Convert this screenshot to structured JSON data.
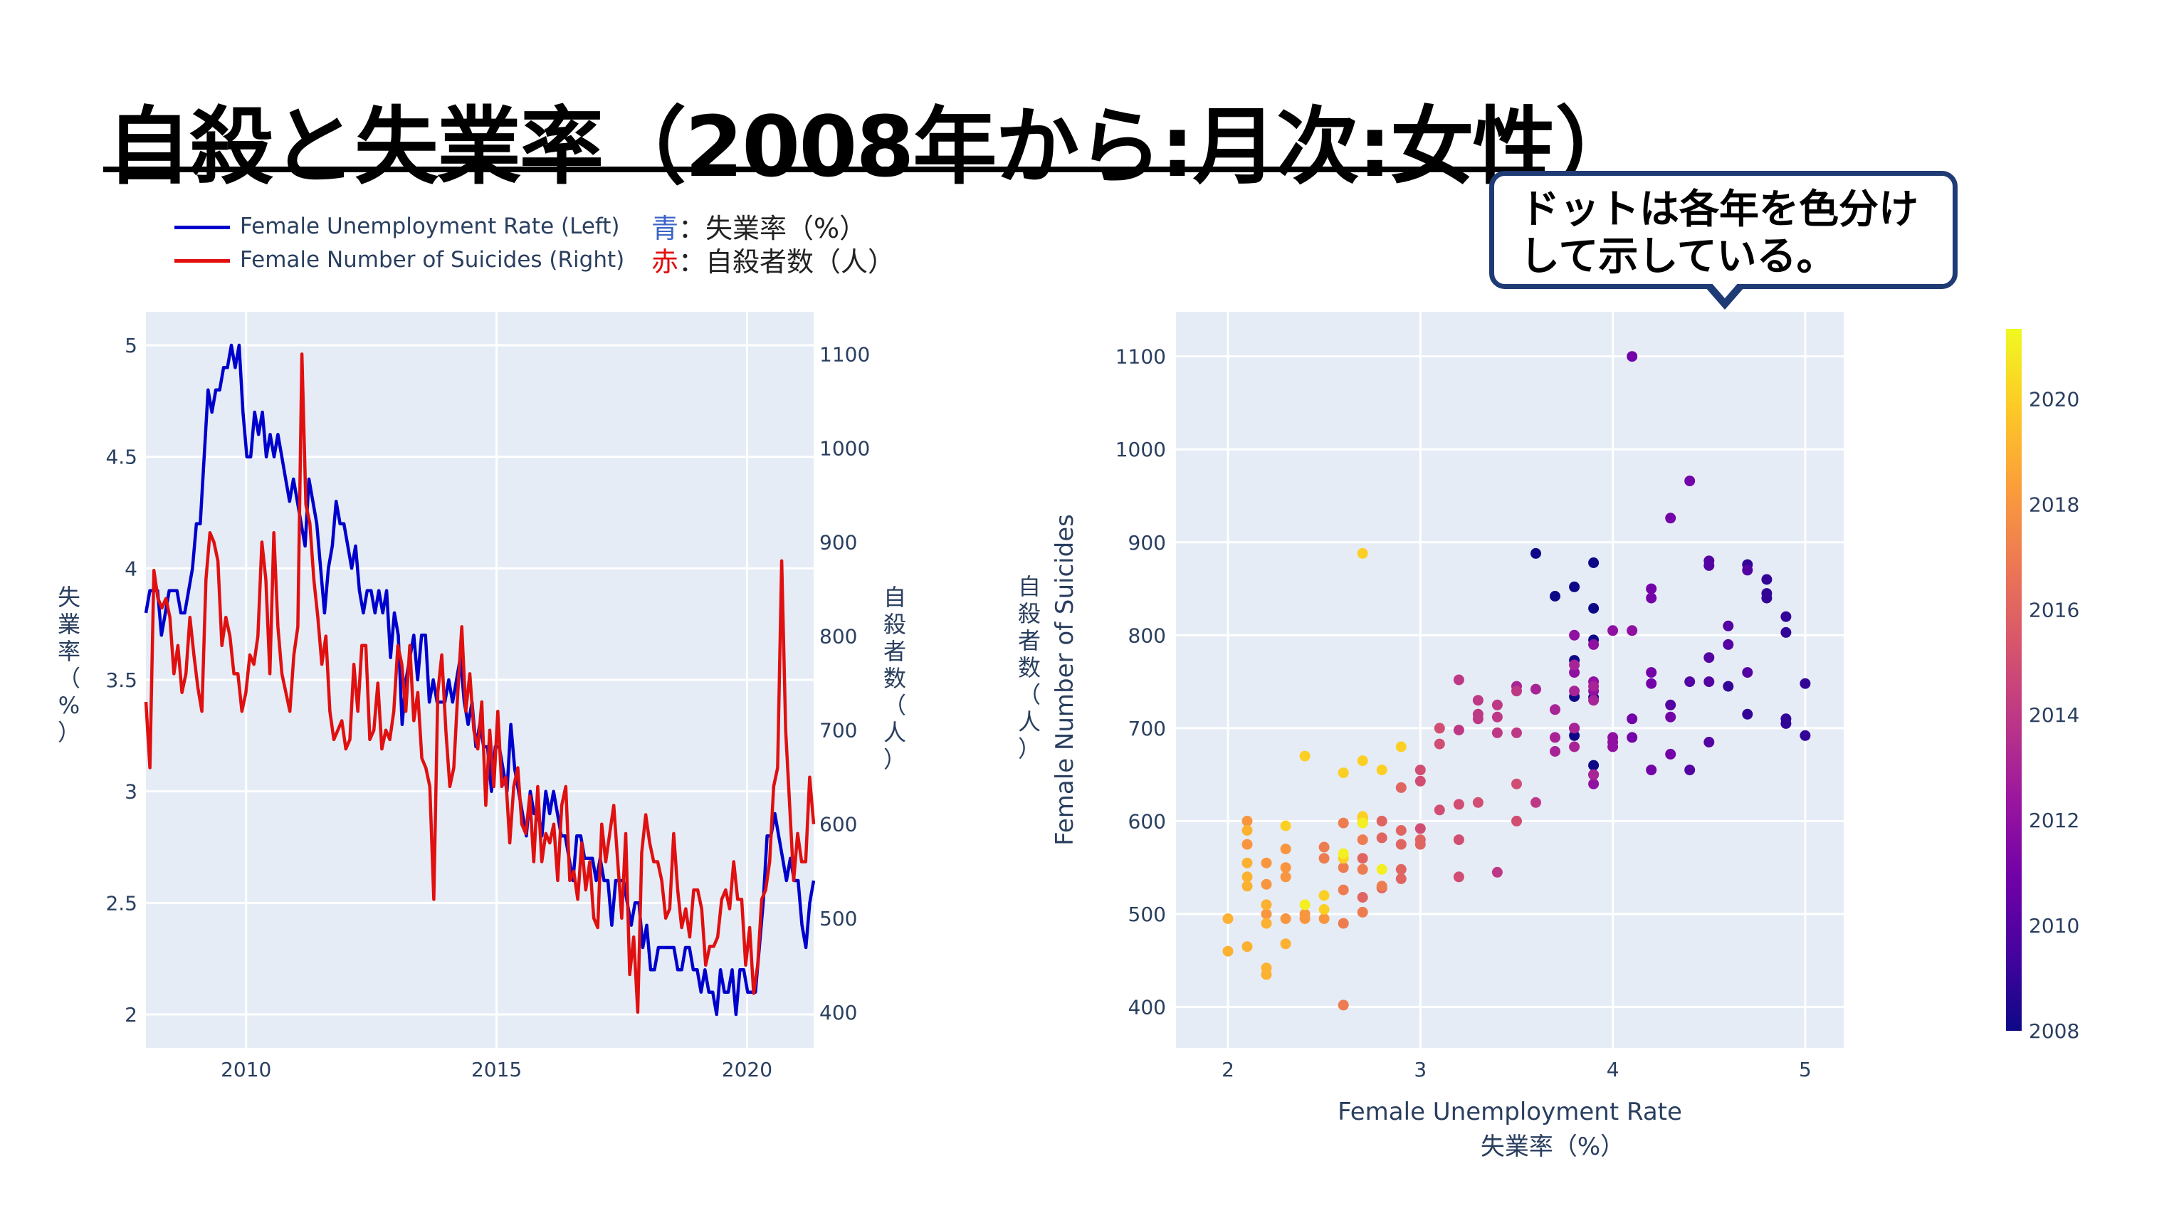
{
  "slide": {
    "title": "自殺と失業率（2008年から:月次:女性）",
    "callout": "ドットは各年を色分け\nして示している。",
    "legend_items": [
      {
        "label": "Female Unemployment Rate (Left)",
        "color": "#0000cc"
      },
      {
        "label": "Female Number of Suicides (Right)",
        "color": "#e01010"
      }
    ],
    "notes": [
      {
        "prefix": "青",
        "text": "：失業率（%）",
        "color": "#3b64c8"
      },
      {
        "prefix": "赤",
        "text": "：自殺者数（人）",
        "color": "#e01010"
      }
    ]
  },
  "chart_data": [
    {
      "type": "line",
      "x_range": [
        2008,
        2021.33
      ],
      "xticks": [
        2010,
        2015,
        2020
      ],
      "y_left": {
        "range": [
          1.85,
          5.15
        ],
        "ticks": [
          2,
          2.5,
          3,
          3.5,
          4,
          4.5,
          5
        ],
        "label": "失業率（%）"
      },
      "y_right": {
        "range": [
          362,
          1145
        ],
        "ticks": [
          400,
          500,
          600,
          700,
          800,
          900,
          1000,
          1100
        ],
        "label": "自殺者数（人）"
      },
      "series": [
        {
          "name": "Female Unemployment Rate (Left)",
          "axis": "left",
          "color": "#0000cc",
          "values": [
            3.8,
            3.9,
            3.9,
            3.9,
            3.7,
            3.8,
            3.9,
            3.9,
            3.9,
            3.8,
            3.8,
            3.9,
            4.0,
            4.2,
            4.2,
            4.5,
            4.8,
            4.7,
            4.8,
            4.8,
            4.9,
            4.9,
            5.0,
            4.9,
            5.0,
            4.7,
            4.5,
            4.5,
            4.7,
            4.6,
            4.7,
            4.5,
            4.6,
            4.5,
            4.6,
            4.5,
            4.4,
            4.3,
            4.4,
            4.3,
            4.2,
            4.1,
            4.4,
            4.3,
            4.2,
            4.0,
            3.8,
            4.0,
            4.1,
            4.3,
            4.2,
            4.2,
            4.1,
            4.0,
            4.1,
            3.9,
            3.8,
            3.9,
            3.9,
            3.8,
            3.9,
            3.8,
            3.9,
            3.6,
            3.8,
            3.7,
            3.3,
            3.5,
            3.6,
            3.7,
            3.5,
            3.7,
            3.7,
            3.4,
            3.5,
            3.4,
            3.4,
            3.4,
            3.5,
            3.4,
            3.5,
            3.6,
            3.4,
            3.3,
            3.4,
            3.2,
            3.3,
            3.2,
            3.2,
            3.0,
            3.2,
            3.2,
            3.1,
            3.0,
            3.3,
            3.1,
            3.0,
            2.9,
            2.8,
            3.0,
            2.9,
            2.9,
            2.8,
            3.0,
            2.9,
            3.0,
            2.9,
            2.8,
            2.8,
            2.7,
            2.6,
            2.8,
            2.8,
            2.7,
            2.7,
            2.7,
            2.6,
            2.7,
            2.6,
            2.6,
            2.4,
            2.6,
            2.6,
            2.6,
            2.5,
            2.4,
            2.5,
            2.5,
            2.3,
            2.4,
            2.2,
            2.2,
            2.3,
            2.3,
            2.3,
            2.3,
            2.3,
            2.2,
            2.2,
            2.3,
            2.3,
            2.2,
            2.2,
            2.1,
            2.2,
            2.1,
            2.1,
            2.0,
            2.2,
            2.1,
            2.1,
            2.2,
            2.0,
            2.2,
            2.2,
            2.1,
            2.1,
            2.1,
            2.3,
            2.5,
            2.8,
            2.8,
            2.9,
            2.8,
            2.7,
            2.6,
            2.7,
            2.6,
            2.6,
            2.4,
            2.3,
            2.5,
            2.6
          ]
        },
        {
          "name": "Female Number of Suicides (Right)",
          "axis": "right",
          "color": "#e01010",
          "values": [
            730,
            660,
            870,
            840,
            830,
            840,
            820,
            760,
            790,
            740,
            760,
            820,
            780,
            745,
            720,
            860,
            910,
            900,
            880,
            790,
            820,
            800,
            760,
            760,
            720,
            740,
            780,
            770,
            800,
            900,
            860,
            760,
            910,
            810,
            760,
            740,
            720,
            780,
            810,
            1100,
            940,
            920,
            860,
            820,
            770,
            800,
            720,
            690,
            700,
            710,
            680,
            690,
            770,
            720,
            790,
            790,
            690,
            700,
            750,
            680,
            700,
            690,
            720,
            790,
            770,
            720,
            790,
            710,
            740,
            670,
            660,
            640,
            520,
            740,
            780,
            700,
            640,
            660,
            740,
            810,
            720,
            760,
            700,
            680,
            730,
            620,
            700,
            640,
            720,
            640,
            650,
            580,
            640,
            660,
            600,
            590,
            630,
            560,
            640,
            560,
            590,
            580,
            600,
            540,
            620,
            640,
            540,
            550,
            520,
            580,
            530,
            560,
            500,
            490,
            600,
            560,
            590,
            620,
            560,
            500,
            590,
            440,
            480,
            400,
            570,
            610,
            580,
            560,
            560,
            540,
            500,
            510,
            590,
            530,
            490,
            510,
            480,
            530,
            530,
            510,
            450,
            470,
            470,
            480,
            520,
            530,
            510,
            560,
            520,
            520,
            450,
            490,
            420,
            450,
            520,
            530,
            560,
            640,
            660,
            880,
            700,
            620,
            540,
            590,
            560,
            560,
            650,
            600
          ]
        }
      ]
    },
    {
      "type": "scatter",
      "xlabel": "Female Unemployment Rate",
      "xlabel_sub": "失業率（%）",
      "ylabel": "Female Number of Suicides",
      "ylabel_sub": "自殺者数（人）",
      "x_range": [
        1.73,
        5.2
      ],
      "y_range": [
        356,
        1148
      ],
      "xticks": [
        2,
        3,
        4,
        5
      ],
      "yticks": [
        400,
        500,
        600,
        700,
        800,
        900,
        1000,
        1100
      ],
      "colorbar": {
        "range": [
          2008,
          2021.33
        ],
        "ticks": [
          2008,
          2010,
          2012,
          2014,
          2016,
          2018,
          2020
        ]
      },
      "color_by": "year",
      "points": [
        [
          3.6,
          888,
          2008
        ],
        [
          3.9,
          878,
          2008
        ],
        [
          3.9,
          829,
          2008
        ],
        [
          3.8,
          773,
          2008
        ],
        [
          3.9,
          733,
          2008
        ],
        [
          3.8,
          852,
          2008
        ],
        [
          3.7,
          842,
          2008
        ],
        [
          3.8,
          734,
          2008
        ],
        [
          3.8,
          692,
          2008
        ],
        [
          3.9,
          660,
          2008
        ],
        [
          3.9,
          795,
          2008
        ],
        [
          3.8,
          700,
          2008
        ],
        [
          4.9,
          820,
          2009
        ],
        [
          5.0,
          748,
          2009
        ],
        [
          4.9,
          710,
          2009
        ],
        [
          4.8,
          860,
          2009
        ],
        [
          4.8,
          840,
          2009
        ],
        [
          4.7,
          876,
          2009
        ],
        [
          4.9,
          803,
          2009
        ],
        [
          5.0,
          692,
          2009
        ],
        [
          4.8,
          845,
          2009
        ],
        [
          4.9,
          705,
          2009
        ],
        [
          4.7,
          715,
          2009
        ],
        [
          4.6,
          745,
          2009
        ],
        [
          4.5,
          880,
          2010
        ],
        [
          4.7,
          870,
          2010
        ],
        [
          4.5,
          875,
          2010
        ],
        [
          4.6,
          810,
          2010
        ],
        [
          4.5,
          776,
          2010
        ],
        [
          4.7,
          760,
          2010
        ],
        [
          4.6,
          790,
          2010
        ],
        [
          4.5,
          750,
          2010
        ],
        [
          4.4,
          750,
          2010
        ],
        [
          4.3,
          725,
          2010
        ],
        [
          4.5,
          685,
          2010
        ],
        [
          4.4,
          655,
          2010
        ],
        [
          4.1,
          1100,
          2011
        ],
        [
          4.4,
          966,
          2011
        ],
        [
          4.3,
          926,
          2011
        ],
        [
          4.2,
          850,
          2011
        ],
        [
          4.2,
          840,
          2011
        ],
        [
          4.2,
          760,
          2011
        ],
        [
          4.3,
          712,
          2011
        ],
        [
          4.1,
          710,
          2011
        ],
        [
          4.1,
          690,
          2011
        ],
        [
          4.2,
          748,
          2011
        ],
        [
          4.3,
          672,
          2011
        ],
        [
          4.2,
          655,
          2011
        ],
        [
          4.0,
          805,
          2012
        ],
        [
          3.9,
          790,
          2012
        ],
        [
          4.1,
          805,
          2012
        ],
        [
          4.0,
          690,
          2012
        ],
        [
          3.9,
          750,
          2012
        ],
        [
          3.9,
          740,
          2012
        ],
        [
          4.0,
          680,
          2012
        ],
        [
          3.9,
          650,
          2012
        ],
        [
          3.9,
          640,
          2012
        ],
        [
          3.8,
          800,
          2012
        ],
        [
          3.8,
          760,
          2012
        ],
        [
          4.0,
          685,
          2012
        ],
        [
          3.6,
          742,
          2013
        ],
        [
          3.7,
          720,
          2013
        ],
        [
          3.8,
          740,
          2013
        ],
        [
          3.7,
          690,
          2013
        ],
        [
          3.8,
          700,
          2013
        ],
        [
          3.8,
          680,
          2013
        ],
        [
          3.9,
          745,
          2013
        ],
        [
          3.7,
          675,
          2013
        ],
        [
          3.9,
          730,
          2013
        ],
        [
          3.8,
          768,
          2013
        ],
        [
          3.9,
          650,
          2013
        ],
        [
          3.5,
          745,
          2013
        ],
        [
          3.5,
          740,
          2014
        ],
        [
          3.4,
          725,
          2014
        ],
        [
          3.3,
          730,
          2014
        ],
        [
          3.4,
          712,
          2014
        ],
        [
          3.5,
          695,
          2014
        ],
        [
          3.3,
          710,
          2014
        ],
        [
          3.2,
          752,
          2014
        ],
        [
          3.4,
          695,
          2014
        ],
        [
          3.3,
          715,
          2014
        ],
        [
          3.4,
          545,
          2014
        ],
        [
          3.2,
          698,
          2014
        ],
        [
          3.6,
          620,
          2014
        ],
        [
          3.5,
          640,
          2015
        ],
        [
          3.3,
          620,
          2015
        ],
        [
          3.1,
          683,
          2015
        ],
        [
          3.2,
          618,
          2015
        ],
        [
          3.0,
          655,
          2015
        ],
        [
          3.1,
          612,
          2015
        ],
        [
          3.2,
          580,
          2015
        ],
        [
          3.0,
          592,
          2015
        ],
        [
          3.5,
          600,
          2015
        ],
        [
          3.2,
          540,
          2015
        ],
        [
          3.0,
          643,
          2015
        ],
        [
          3.1,
          700,
          2015
        ],
        [
          3.0,
          580,
          2016
        ],
        [
          2.9,
          575,
          2016
        ],
        [
          2.9,
          590,
          2016
        ],
        [
          2.8,
          582,
          2016
        ],
        [
          3.0,
          575,
          2016
        ],
        [
          2.9,
          548,
          2016
        ],
        [
          2.8,
          600,
          2016
        ],
        [
          2.8,
          528,
          2016
        ],
        [
          2.9,
          538,
          2016
        ],
        [
          2.9,
          636,
          2016
        ],
        [
          2.7,
          560,
          2016
        ],
        [
          2.7,
          518,
          2016
        ],
        [
          2.8,
          530,
          2017
        ],
        [
          2.7,
          502,
          2017
        ],
        [
          2.6,
          550,
          2017
        ],
        [
          2.6,
          598,
          2017
        ],
        [
          2.7,
          604,
          2017
        ],
        [
          2.6,
          490,
          2017
        ],
        [
          2.6,
          402,
          2017
        ],
        [
          2.7,
          580,
          2017
        ],
        [
          2.6,
          526,
          2017
        ],
        [
          2.7,
          548,
          2017
        ],
        [
          2.5,
          560,
          2017
        ],
        [
          2.5,
          572,
          2017
        ],
        [
          2.4,
          495,
          2018
        ],
        [
          2.3,
          540,
          2018
        ],
        [
          2.4,
          500,
          2018
        ],
        [
          2.3,
          570,
          2018
        ],
        [
          2.3,
          550,
          2018
        ],
        [
          2.2,
          555,
          2018
        ],
        [
          2.1,
          600,
          2018
        ],
        [
          2.5,
          495,
          2018
        ],
        [
          2.3,
          495,
          2018
        ],
        [
          2.2,
          500,
          2018
        ],
        [
          2.2,
          532,
          2018
        ],
        [
          2.1,
          575,
          2018
        ],
        [
          2.1,
          540,
          2019
        ],
        [
          2.2,
          510,
          2019
        ],
        [
          2.0,
          460,
          2019
        ],
        [
          2.1,
          465,
          2019
        ],
        [
          2.2,
          435,
          2019
        ],
        [
          2.1,
          590,
          2019
        ],
        [
          2.2,
          442,
          2019
        ],
        [
          2.0,
          495,
          2019
        ],
        [
          2.1,
          530,
          2019
        ],
        [
          2.2,
          490,
          2019
        ],
        [
          2.3,
          468,
          2019
        ],
        [
          2.1,
          555,
          2019
        ],
        [
          2.3,
          595,
          2020
        ],
        [
          2.4,
          670,
          2020
        ],
        [
          2.7,
          665,
          2020
        ],
        [
          2.6,
          652,
          2020
        ],
        [
          2.8,
          655,
          2020
        ],
        [
          2.9,
          680,
          2020
        ],
        [
          2.7,
          888,
          2020
        ],
        [
          2.7,
          600,
          2020
        ],
        [
          2.6,
          560,
          2020
        ],
        [
          2.5,
          505,
          2020
        ],
        [
          2.7,
          605,
          2020
        ],
        [
          2.5,
          520,
          2020
        ],
        [
          2.6,
          565,
          2021
        ],
        [
          2.4,
          510,
          2021
        ],
        [
          2.7,
          598,
          2021
        ],
        [
          2.8,
          548,
          2021
        ]
      ]
    }
  ]
}
